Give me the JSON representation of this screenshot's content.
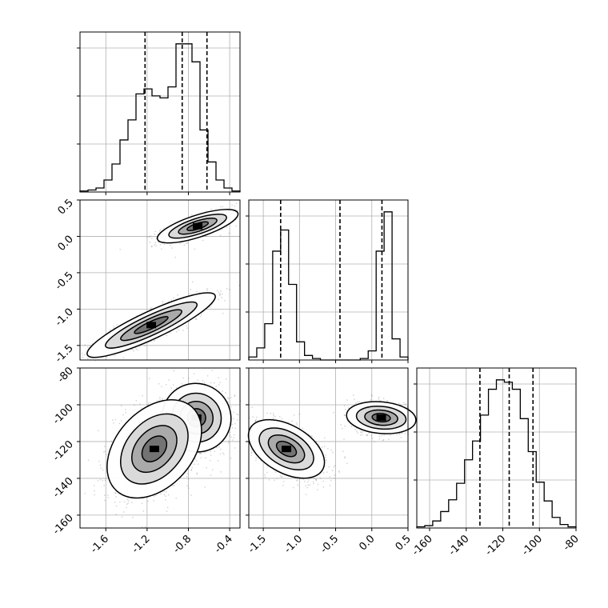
{
  "chart_data": {
    "type": "corner",
    "parameters": [
      "",
      "",
      ""
    ],
    "grid": true,
    "colors": {
      "hist": "#000000",
      "contour": "#000000",
      "points": "#555555",
      "grid": "#b0b0b0"
    },
    "hist_1d": [
      {
        "range": [
          -1.85,
          -0.3
        ],
        "xticks": [
          "-1.6",
          "-1.2",
          "-0.8",
          "-0.4"
        ],
        "xtick_values": [
          -1.6,
          -1.2,
          -0.8,
          -0.4
        ],
        "heights": [
          1,
          2,
          4,
          12,
          28,
          52,
          72,
          98,
          103,
          96,
          94,
          105,
          148,
          148,
          130,
          62,
          30,
          12,
          4,
          1
        ],
        "quantiles": [
          -1.22,
          -0.86,
          -0.62
        ]
      },
      {
        "range": [
          -1.7,
          0.5
        ],
        "xticks": [
          "-1.5",
          "-1.0",
          "-0.5",
          "0.0",
          "0.5"
        ],
        "xtick_values": [
          -1.5,
          -1.0,
          -0.5,
          0.0,
          0.5
        ],
        "heights": [
          2,
          8,
          24,
          72,
          86,
          50,
          12,
          3,
          1,
          0,
          0,
          0,
          0,
          0,
          1,
          6,
          72,
          98,
          14,
          2
        ],
        "quantiles": [
          -1.26,
          -0.44,
          0.14
        ]
      },
      {
        "range": [
          -167,
          -80
        ],
        "xticks": [
          "-160",
          "-140",
          "-120",
          "-100",
          "-80"
        ],
        "xtick_values": [
          -160,
          -140,
          -120,
          -100,
          -80
        ],
        "heights": [
          1,
          2,
          6,
          14,
          24,
          38,
          58,
          74,
          96,
          118,
          126,
          124,
          118,
          93,
          65,
          39,
          23,
          9,
          3,
          1
        ],
        "quantiles": [
          -132.5,
          -116.5,
          -103.5
        ]
      }
    ],
    "hist_2d": [
      {
        "x_param": 0,
        "y_param": 1,
        "yticks": [
          "0.5",
          "0.0",
          "-0.5",
          "-1.0",
          "-1.5"
        ],
        "ytick_values": [
          0.5,
          0.0,
          -0.5,
          -1.0,
          -1.5
        ],
        "modes": [
          {
            "x": -0.71,
            "y": 0.14,
            "sx": 0.15,
            "sy": 0.08,
            "angle_deg": 18,
            "n": 700
          },
          {
            "x": -1.16,
            "y": -1.22,
            "sx": 0.25,
            "sy": 0.1,
            "angle_deg": 25,
            "n": 1000
          }
        ]
      },
      {
        "x_param": 0,
        "y_param": 2,
        "yticks": [
          "-80",
          "-100",
          "-120",
          "-140",
          "-160"
        ],
        "ytick_values": [
          -80,
          -100,
          -120,
          -140,
          -160
        ],
        "modes": [
          {
            "x": -0.72,
            "y": -107,
            "sx": 0.12,
            "sy": 10,
            "angle_deg": 50,
            "n": 900
          },
          {
            "x": -1.13,
            "y": -124,
            "sx": 0.2,
            "sy": 11,
            "angle_deg": 48,
            "n": 1100
          }
        ]
      },
      {
        "x_param": 1,
        "y_param": 2,
        "modes": [
          {
            "x": -1.18,
            "y": -124,
            "sx": 0.12,
            "sy": 12,
            "angle_deg": 60,
            "n": 1100
          },
          {
            "x": 0.13,
            "y": -107,
            "sx": 0.08,
            "sy": 10,
            "angle_deg": 85,
            "n": 900
          }
        ]
      }
    ]
  }
}
